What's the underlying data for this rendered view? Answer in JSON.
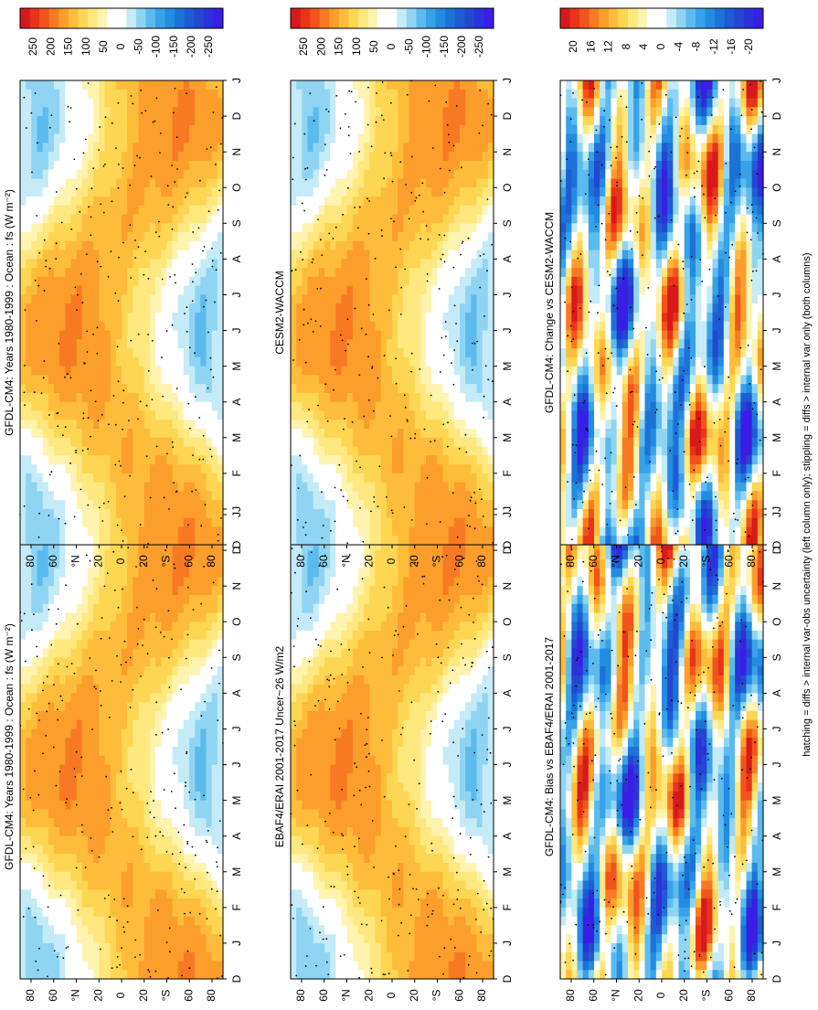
{
  "figure_caption": "hatching = diffs > internal var-obs uncertainty (left column only); stippling = diffs > internal var only (both columns)",
  "month_labels": [
    "D",
    "J",
    "F",
    "M",
    "A",
    "M",
    "J",
    "J",
    "A",
    "S",
    "O",
    "N",
    "D",
    "J"
  ],
  "lat_labels": [
    "80",
    "60",
    "°N",
    "20",
    "0",
    "20",
    "°S",
    "60",
    "80"
  ],
  "chart_data": [
    {
      "id": "p1",
      "type": "heatmap",
      "title": "GFDL-CM4: Years 1980-1999 : Ocean : fs (W m⁻²)",
      "field": "mean",
      "cbar": "abs"
    },
    {
      "id": "p2",
      "type": "heatmap",
      "title": "GFDL-CM4: Years 1980-1999 : Ocean : fs (W m⁻²)",
      "field": "mean",
      "cbar": "abs"
    },
    {
      "id": "p3",
      "type": "heatmap",
      "title": "EBAF4/ERAI 2001-2017 Uncer~26 W/m2",
      "field": "mean",
      "cbar": "abs"
    },
    {
      "id": "p4",
      "type": "heatmap",
      "title": "CESM2-WACCM",
      "field": "mean",
      "cbar": "abs"
    },
    {
      "id": "p5",
      "type": "heatmap",
      "title": "GFDL-CM4: Bias vs EBAF4/ERAI 2001-2017",
      "field": "diff",
      "cbar": "diff"
    },
    {
      "id": "p6",
      "type": "heatmap",
      "title": "GFDL-CM4: Change vs CESM2-WACCM",
      "field": "diff",
      "cbar": "diff"
    }
  ],
  "colorbars": {
    "abs": {
      "labels": [
        "250",
        "200",
        "150",
        "100",
        "50",
        "0",
        "-50",
        "-100",
        "-150",
        "-200",
        "-250"
      ],
      "range": [
        -275,
        275
      ],
      "colors": [
        "#d7191c",
        "#e8341a",
        "#f2541d",
        "#f77a23",
        "#fb9e2c",
        "#fdbd3a",
        "#fdd653",
        "#fee87f",
        "#fff3b0",
        "#ffffff",
        "#ffffff",
        "#c4ebf7",
        "#8fd5f3",
        "#5cbbee",
        "#37a2e8",
        "#238be0",
        "#1c72d6",
        "#1f5bd2",
        "#2447cf",
        "#2a32d9",
        "#3a1ee6"
      ]
    },
    "diff": {
      "labels": [
        "20",
        "16",
        "12",
        "8",
        "4",
        "0",
        "-4",
        "-8",
        "-12",
        "-16",
        "-20"
      ],
      "range": [
        -22,
        22
      ],
      "colors": [
        "#d7191c",
        "#e8341a",
        "#f2541d",
        "#f77a23",
        "#fb9e2c",
        "#fdbd3a",
        "#fdd653",
        "#fee87f",
        "#fff3b0",
        "#ffffff",
        "#ffffff",
        "#c4ebf7",
        "#8fd5f3",
        "#5cbbee",
        "#37a2e8",
        "#238be0",
        "#1c72d6",
        "#1f5bd2",
        "#2447cf",
        "#2a32d9",
        "#3a1ee6"
      ]
    }
  }
}
